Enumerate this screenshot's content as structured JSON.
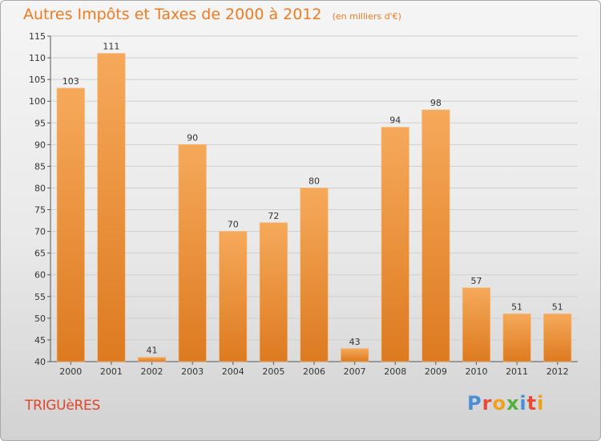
{
  "header": {
    "title": "Autres Impôts et Taxes de 2000 à 2012",
    "unit": "(en milliers d'€)"
  },
  "footer": {
    "town": "TRIGUèRES",
    "logo": "Proxiti",
    "logo_colors": [
      "#4a8fd6",
      "#e84a3a",
      "#f0a020",
      "#55b040",
      "#4a8fd6",
      "#e84a3a",
      "#f0a020"
    ]
  },
  "colors": {
    "bar_light": "#f6a95a",
    "bar_dark": "#dd7a20",
    "accent": "#f07a22"
  },
  "chart_data": {
    "type": "bar",
    "title": "Autres Impôts et Taxes de 2000 à 2012",
    "subtitle": "(en milliers d'€)",
    "xlabel": "",
    "ylabel": "",
    "categories": [
      "2000",
      "2001",
      "2002",
      "2003",
      "2004",
      "2005",
      "2006",
      "2007",
      "2008",
      "2009",
      "2010",
      "2011",
      "2012"
    ],
    "values": [
      103,
      111,
      41,
      90,
      70,
      72,
      80,
      43,
      94,
      98,
      57,
      51,
      51
    ],
    "ylim": [
      40,
      115
    ],
    "yticks": [
      40,
      45,
      50,
      55,
      60,
      65,
      70,
      75,
      80,
      85,
      90,
      95,
      100,
      105,
      110,
      115
    ],
    "grid": true,
    "legend": "none"
  }
}
